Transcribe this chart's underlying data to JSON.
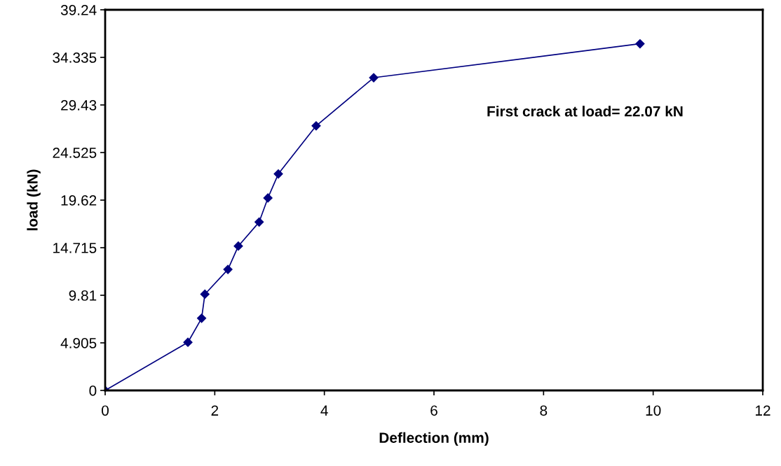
{
  "chart_data": {
    "type": "line",
    "xlabel": "Deflection (mm)",
    "ylabel": "load (kN)",
    "x": [
      0,
      1.51,
      1.76,
      1.82,
      2.24,
      2.43,
      2.81,
      2.97,
      3.16,
      3.85,
      4.9,
      9.76
    ],
    "series": [
      {
        "color": "#000080",
        "values": [
          0,
          4.96,
          7.44,
          9.92,
          12.47,
          14.88,
          17.36,
          19.84,
          22.32,
          27.28,
          32.24,
          35.74
        ]
      }
    ],
    "xlim": [
      0,
      12
    ],
    "xticks": [
      0,
      2,
      4,
      6,
      8,
      10,
      12
    ],
    "ylim": [
      0,
      39.24
    ],
    "yticks": [
      0,
      4.905,
      9.81,
      14.715,
      19.62,
      24.525,
      29.43,
      34.335,
      39.24
    ],
    "annotations": [
      "First crack at load= 22.07 kN"
    ],
    "marker": "diamond",
    "line_style": "solid",
    "grid": false,
    "legend": false
  }
}
